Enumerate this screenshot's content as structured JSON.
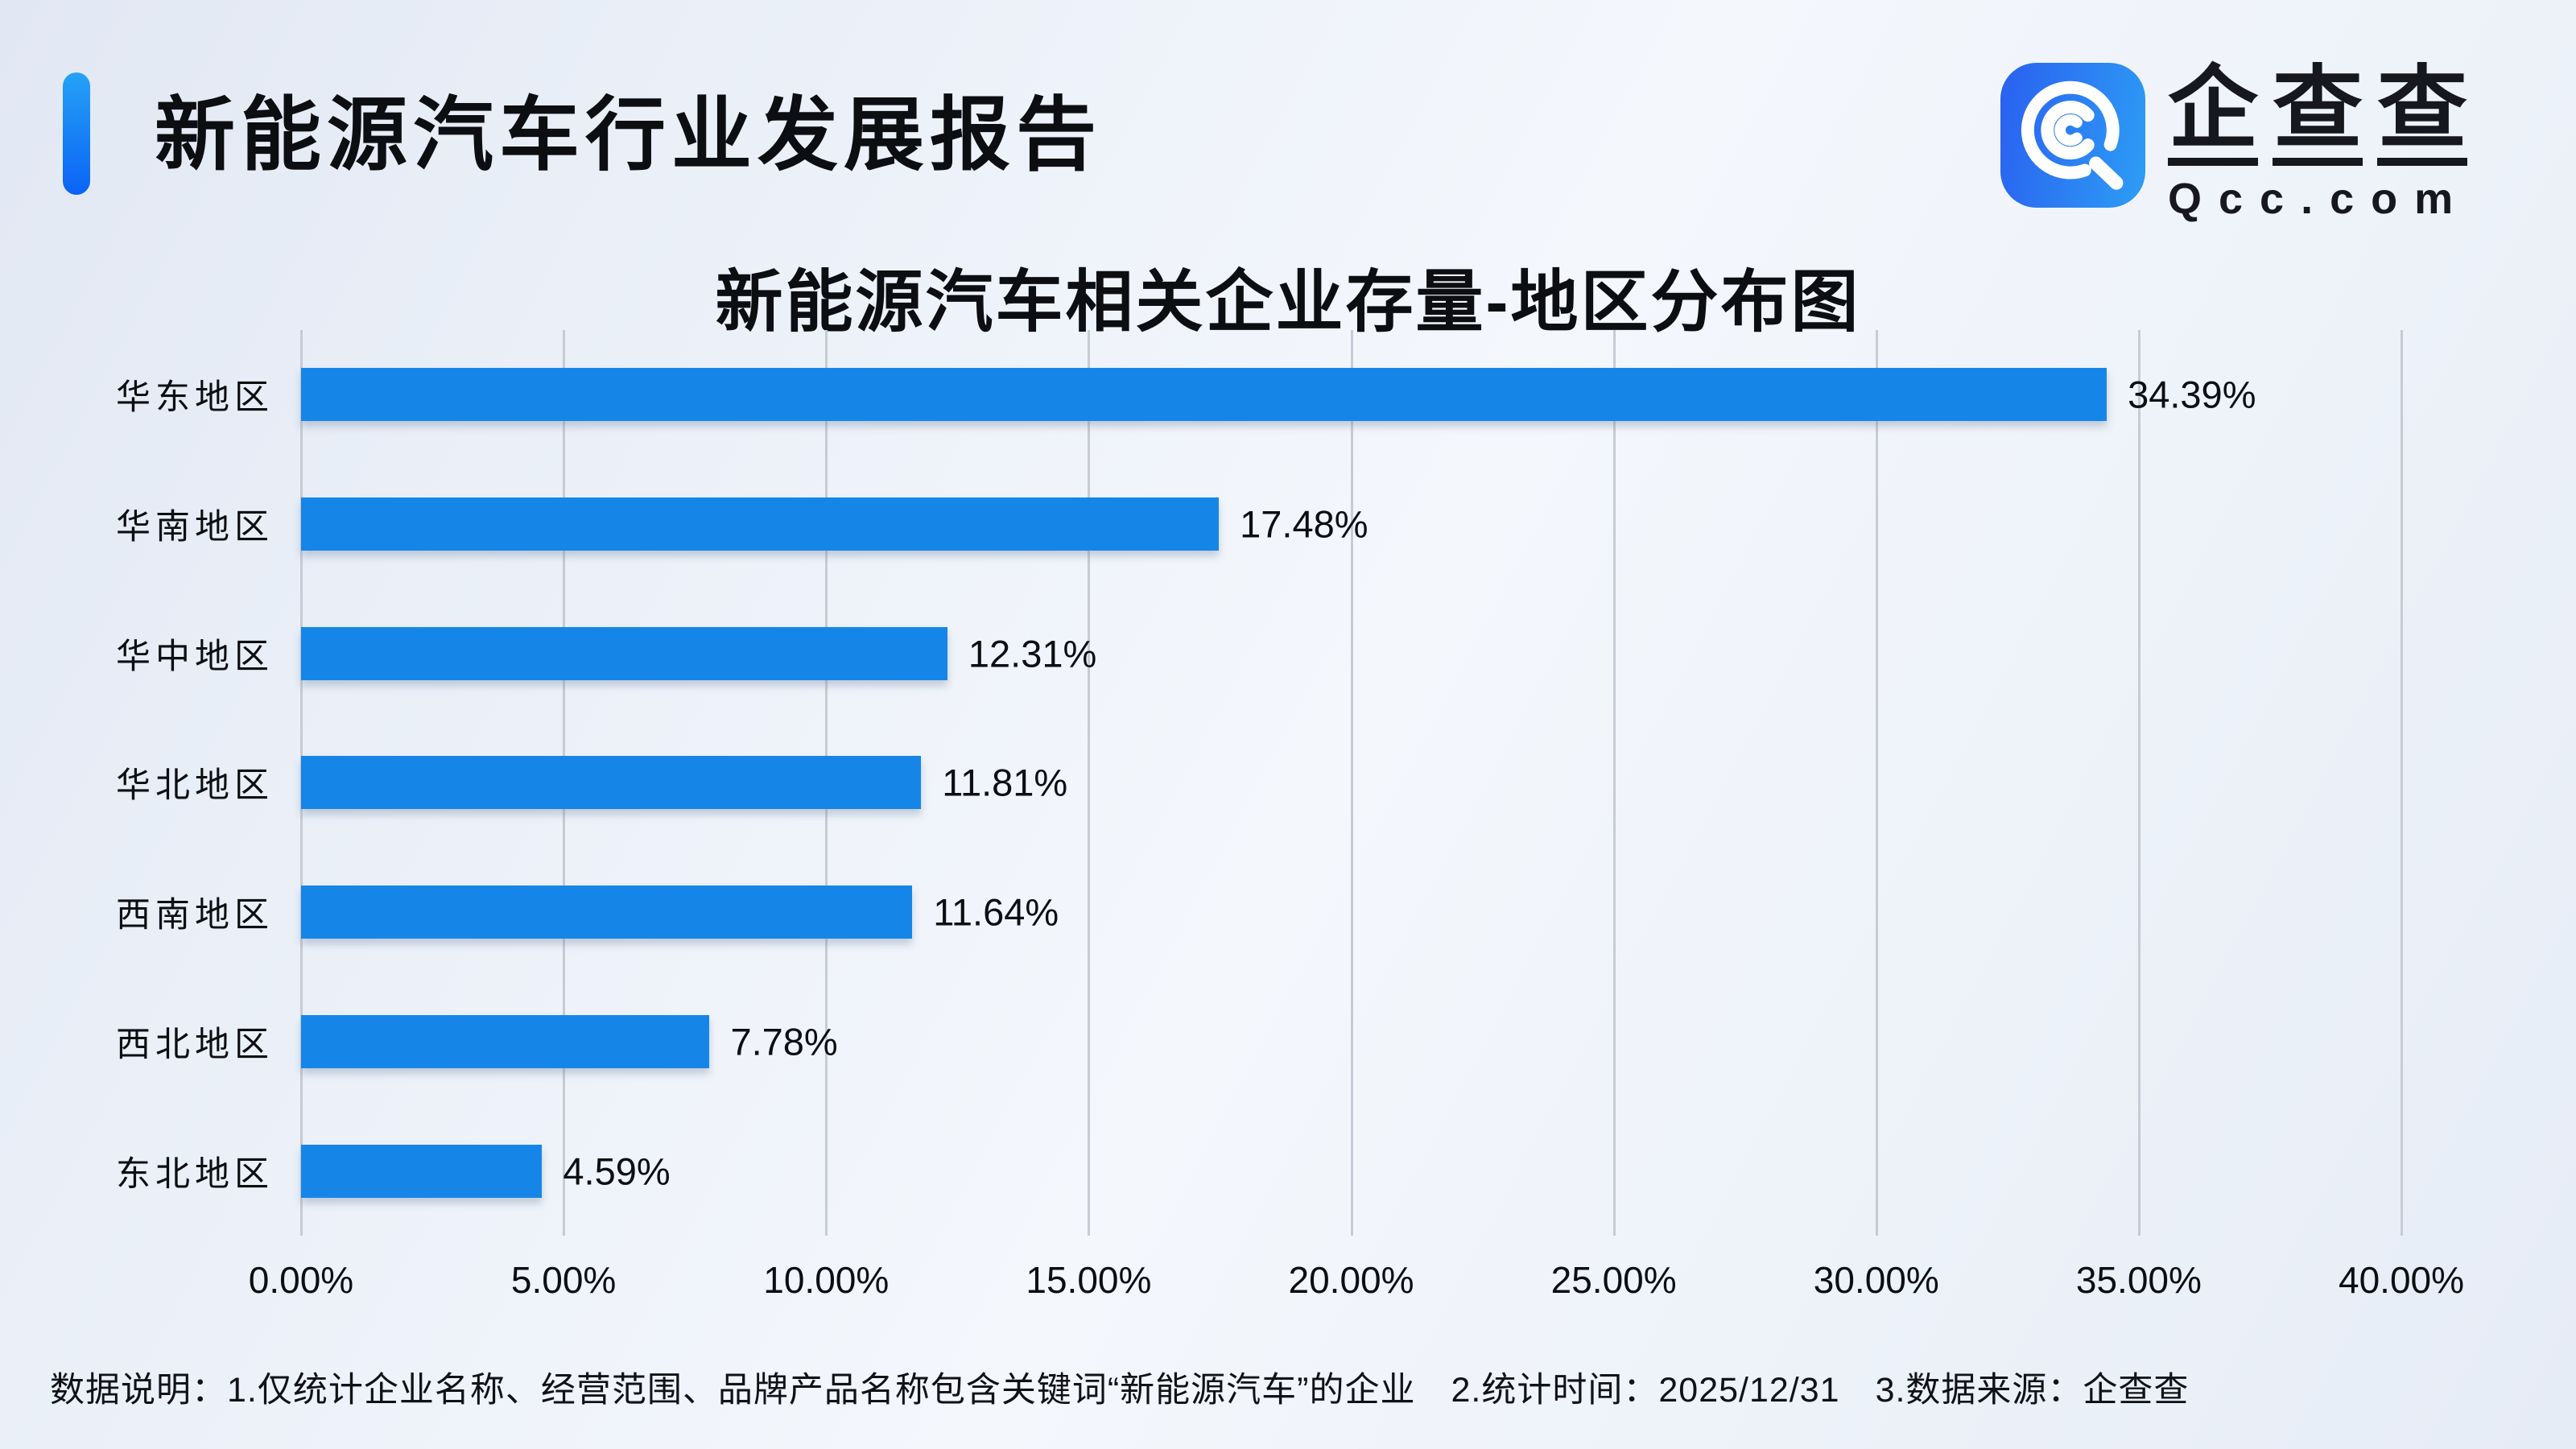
{
  "page": {
    "background_tint": "#edf2f9"
  },
  "header": {
    "title": "新能源汽车行业发展报告",
    "accent_gradient_top": "#25A2F6",
    "accent_gradient_bottom": "#0B63F6"
  },
  "logo": {
    "brand_chars": [
      "企",
      "查",
      "查"
    ],
    "domain": "Qcc.com",
    "icon_gradient_left": "#2A60F0",
    "icon_gradient_right": "#2D9EF5"
  },
  "chart_data": {
    "type": "bar",
    "orientation": "horizontal",
    "title": "新能源汽车相关企业存量-地区分布图",
    "categories": [
      "华东地区",
      "华南地区",
      "华中地区",
      "华北地区",
      "西南地区",
      "西北地区",
      "东北地区"
    ],
    "values": [
      34.39,
      17.48,
      12.31,
      11.81,
      11.64,
      7.78,
      4.59
    ],
    "value_labels": [
      "34.39%",
      "17.48%",
      "12.31%",
      "11.81%",
      "11.64%",
      "7.78%",
      "4.59%"
    ],
    "x_ticks": [
      "0.00%",
      "5.00%",
      "10.00%",
      "15.00%",
      "20.00%",
      "25.00%",
      "30.00%",
      "35.00%",
      "40.00%"
    ],
    "xlim": [
      0,
      40
    ],
    "bar_color": "#1586E8",
    "gridline_color": "#C7CBD4",
    "grid": true,
    "legend": false
  },
  "footnote": "数据说明：1.仅统计企业名称、经营范围、品牌产品名称包含关键词“新能源汽车”的企业　2.统计时间：2025/12/31　3.数据来源：企查查"
}
